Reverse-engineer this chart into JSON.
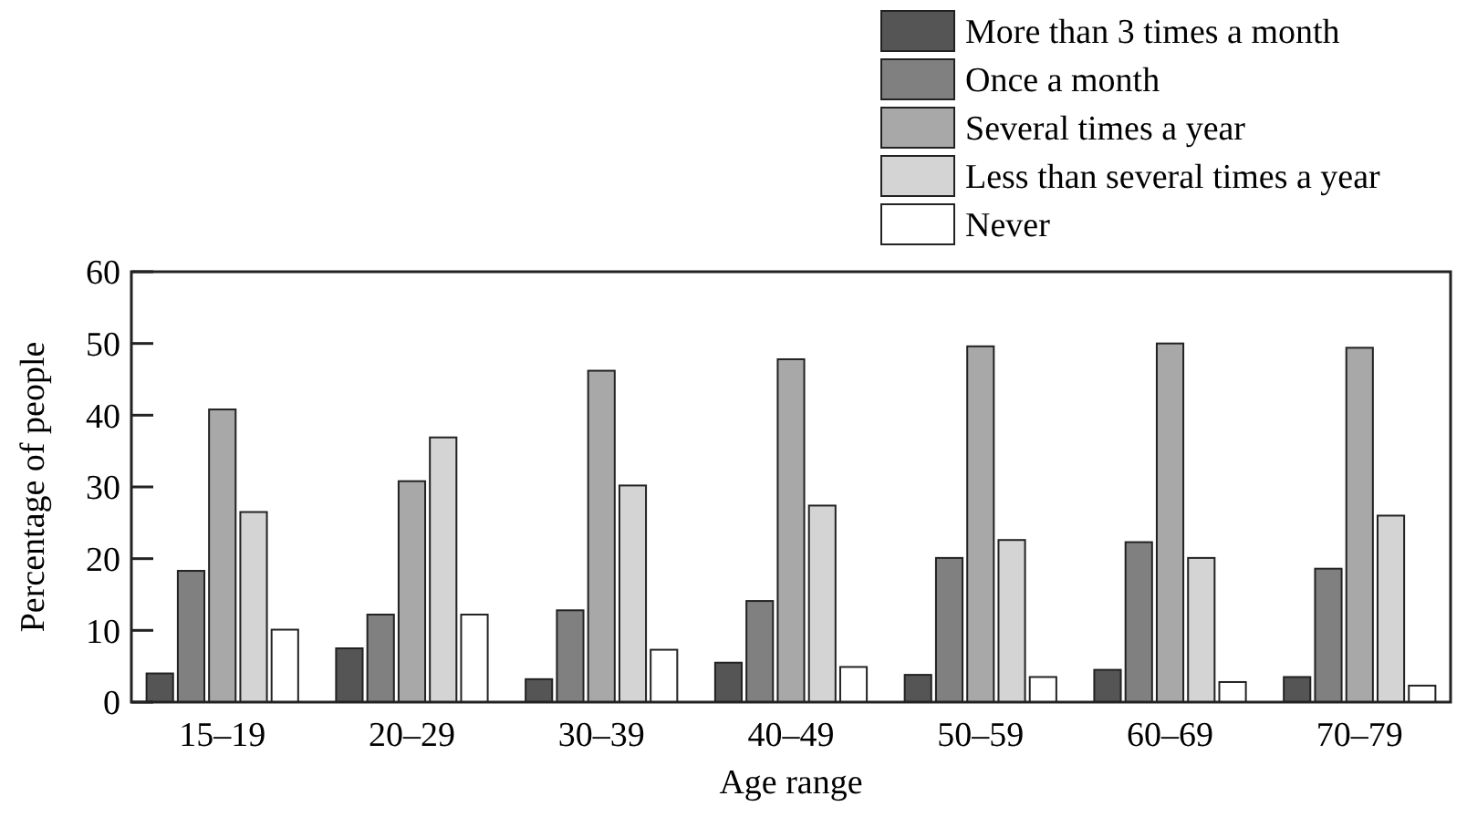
{
  "chart_data": {
    "type": "bar",
    "xlabel": "Age range",
    "ylabel": "Percentage of people",
    "categories": [
      "15–19",
      "20–29",
      "30–39",
      "40–49",
      "50–59",
      "60–69",
      "70–79"
    ],
    "series": [
      {
        "name": "More than 3 times a month",
        "color": "#555555",
        "values": [
          4,
          7.5,
          3.2,
          5.5,
          3.8,
          4.5,
          3.5
        ]
      },
      {
        "name": "Once a month",
        "color": "#808080",
        "values": [
          18.3,
          12.2,
          12.8,
          14.1,
          20.1,
          22.3,
          18.6
        ]
      },
      {
        "name": "Several times a year",
        "color": "#a8a8a8",
        "values": [
          40.8,
          30.8,
          46.2,
          47.8,
          49.6,
          50,
          49.4
        ]
      },
      {
        "name": "Less than several times a year",
        "color": "#d4d4d4",
        "values": [
          26.5,
          36.9,
          30.2,
          27.4,
          22.6,
          20.1,
          26
        ]
      },
      {
        "name": "Never",
        "color": "#ffffff",
        "values": [
          10.1,
          12.2,
          7.3,
          4.9,
          3.5,
          2.8,
          2.3
        ]
      }
    ],
    "ylim": [
      0,
      60
    ],
    "yticks": [
      0,
      10,
      20,
      30,
      40,
      50,
      60
    ],
    "legend": "top right"
  }
}
